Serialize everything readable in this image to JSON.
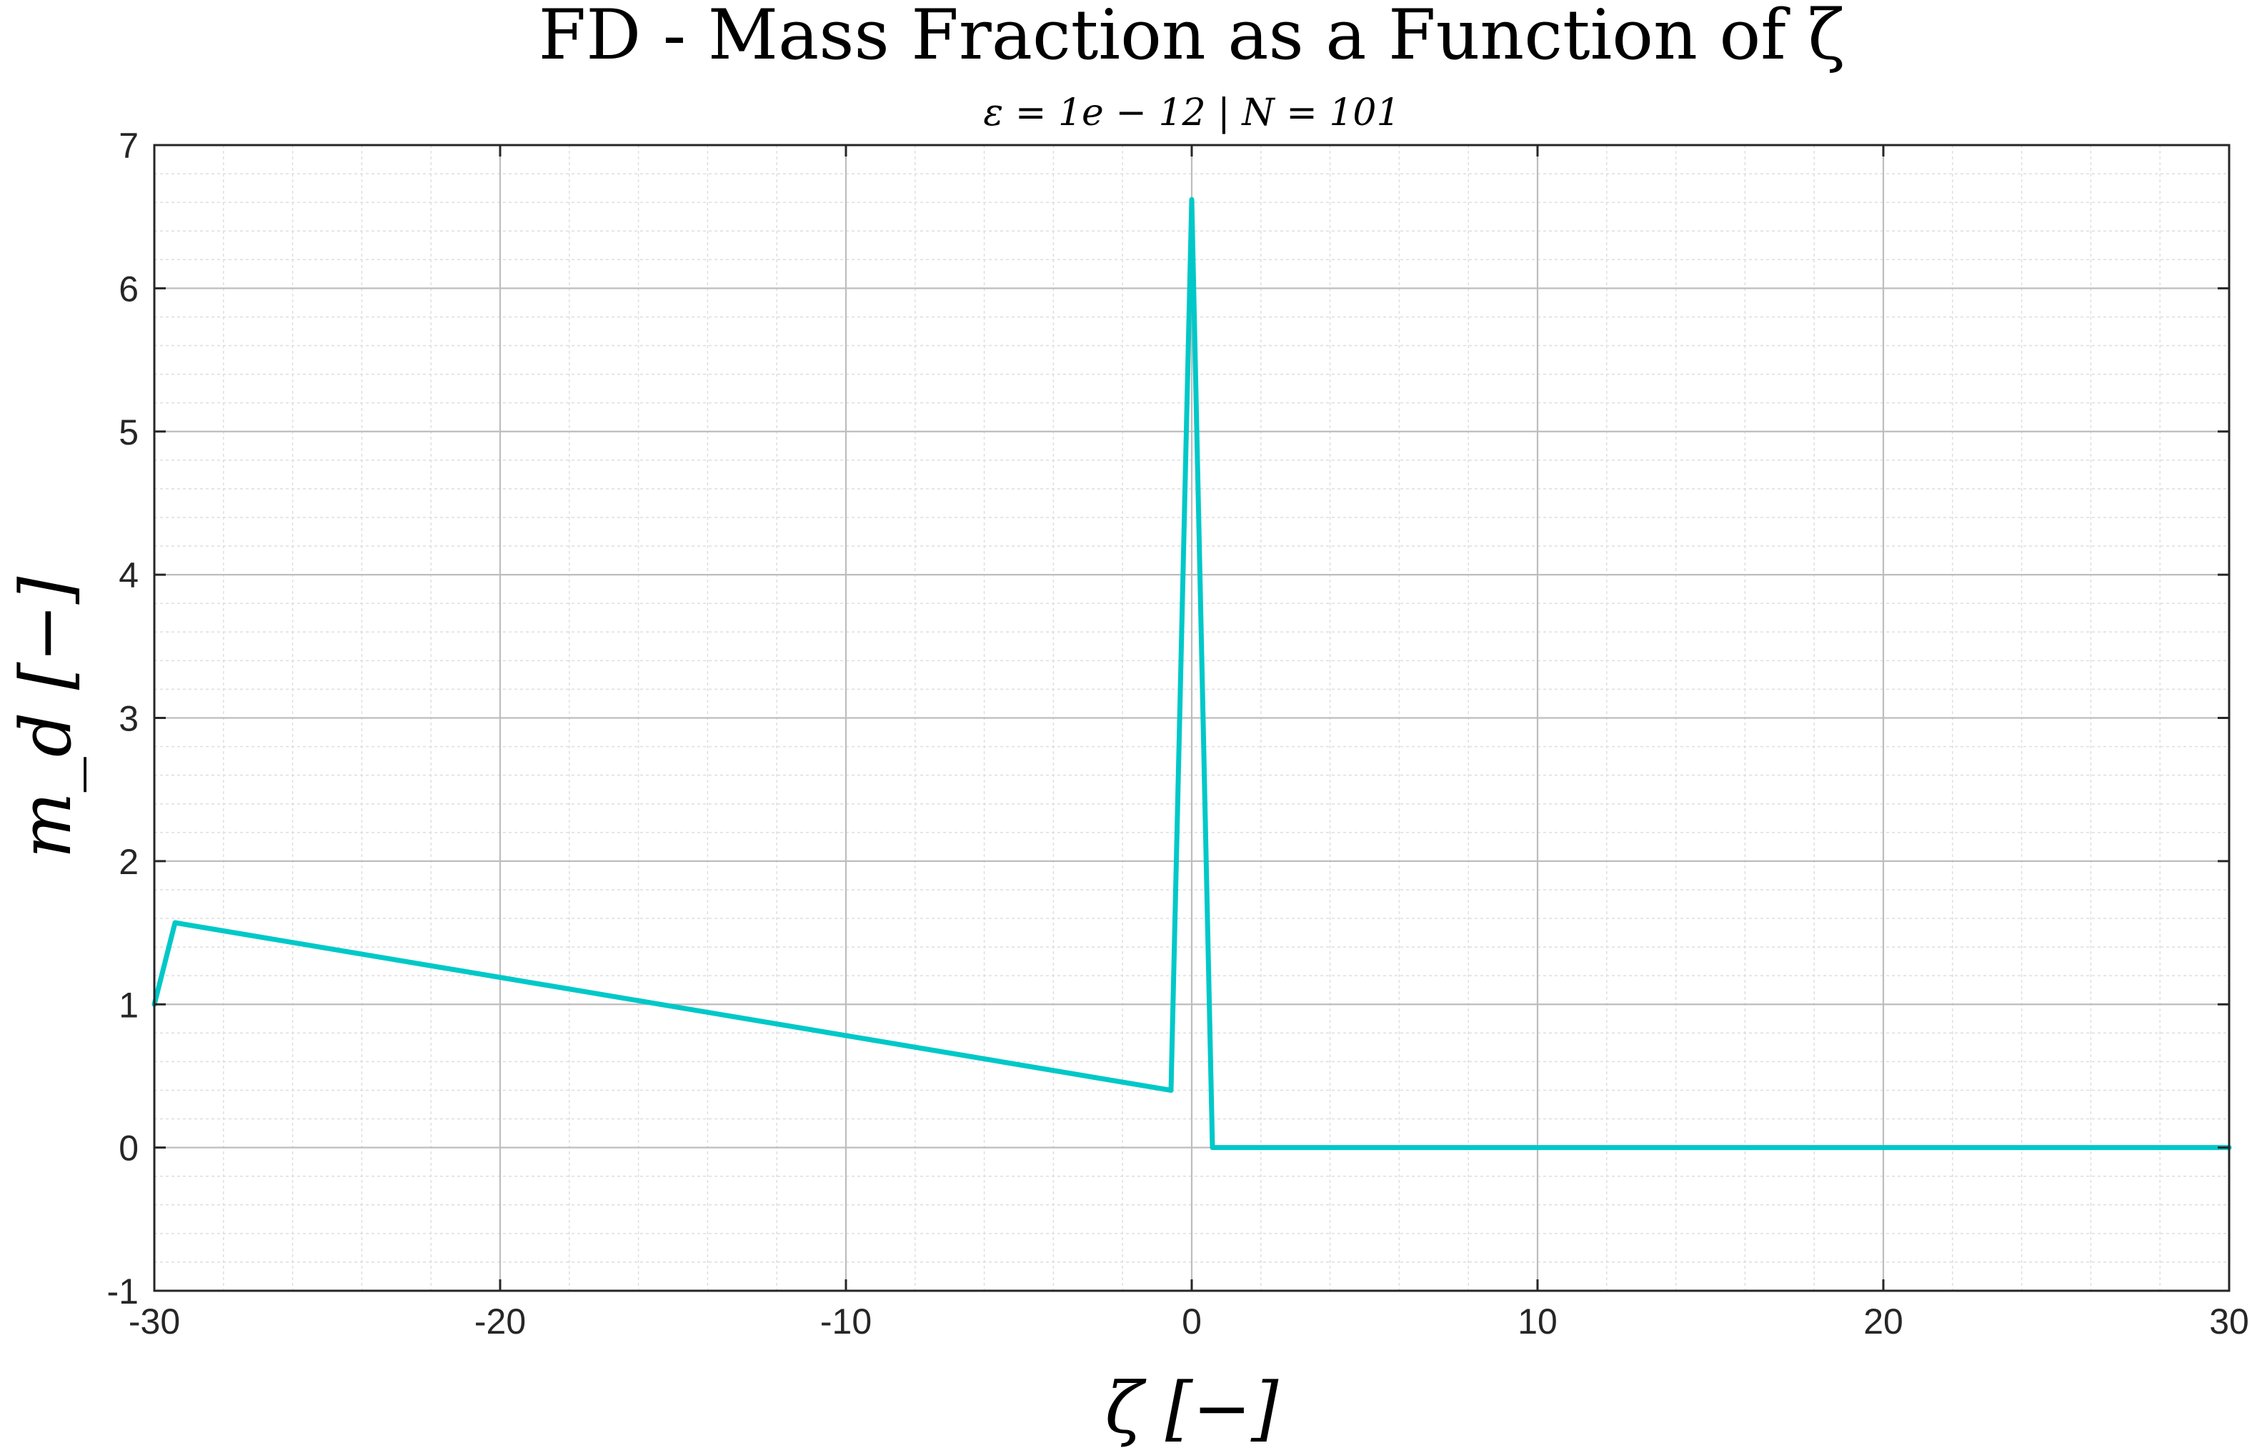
{
  "chart_data": {
    "type": "line",
    "title": "FD - Mass Fraction as a Function of ζ",
    "subtitle": "ε = 1e − 12 | N = 101",
    "xlabel": "ζ [−]",
    "ylabel": "m_d [−]",
    "xlim": [
      -30,
      30
    ],
    "ylim": [
      -1,
      7
    ],
    "xticks": [
      -30,
      -20,
      -10,
      0,
      10,
      20,
      30
    ],
    "yticks": [
      -1,
      0,
      1,
      2,
      3,
      4,
      5,
      6,
      7
    ],
    "xtick_labels": [
      "-30",
      "-20",
      "-10",
      "0",
      "10",
      "20",
      "30"
    ],
    "ytick_labels": [
      "-1",
      "0",
      "1",
      "2",
      "3",
      "4",
      "5",
      "6",
      "7"
    ],
    "grid": true,
    "minor_grid": true,
    "series": [
      {
        "color": "#00c8c8",
        "x": [
          -30,
          -29.4,
          -0.6,
          0,
          0.6,
          30
        ],
        "y": [
          1.0,
          1.57,
          0.4,
          6.62,
          0.0,
          0.0
        ]
      }
    ]
  }
}
